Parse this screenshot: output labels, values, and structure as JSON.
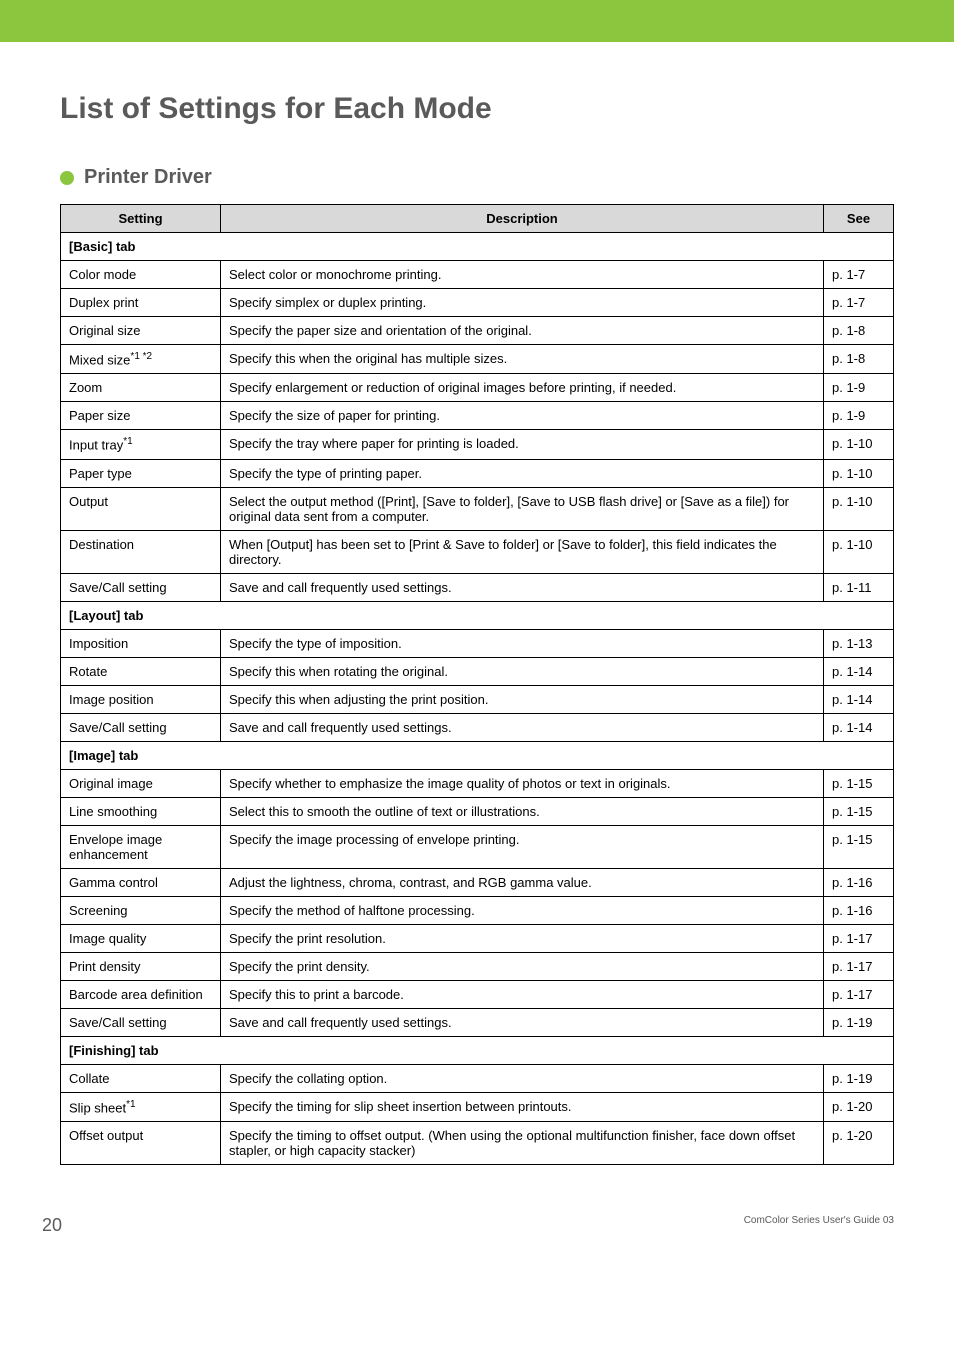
{
  "page_title": "List of Settings for Each Mode",
  "section": {
    "title": "Printer Driver"
  },
  "table": {
    "headers": {
      "setting": "Setting",
      "description": "Description",
      "see": "See"
    },
    "groups": [
      {
        "label": "[Basic] tab",
        "rows": [
          {
            "setting": "Color mode",
            "desc": "Select color or monochrome printing.",
            "see": "p. 1-7"
          },
          {
            "setting": "Duplex print",
            "desc": "Specify simplex or duplex printing.",
            "see": "p. 1-7"
          },
          {
            "setting": "Original size",
            "desc": "Specify the paper size and orientation of the original.",
            "see": "p. 1-8"
          },
          {
            "setting": "Mixed size",
            "sup": "*1 *2",
            "desc": "Specify this when the original has multiple sizes.",
            "see": "p. 1-8"
          },
          {
            "setting": "Zoom",
            "desc": "Specify enlargement or reduction of original images before printing, if needed.",
            "see": "p. 1-9"
          },
          {
            "setting": "Paper size",
            "desc": "Specify the size of paper for printing.",
            "see": "p. 1-9"
          },
          {
            "setting": "Input tray",
            "sup": "*1",
            "desc": "Specify the tray where paper for printing is loaded.",
            "see": "p. 1-10"
          },
          {
            "setting": "Paper type",
            "desc": "Specify the type of printing paper.",
            "see": "p. 1-10"
          },
          {
            "setting": "Output",
            "desc": "Select the output method ([Print], [Save to folder], [Save to USB flash drive] or [Save as a file]) for original data sent from a computer.",
            "see": "p. 1-10"
          },
          {
            "setting": "Destination",
            "desc": "When [Output] has been set to [Print & Save to folder] or [Save to folder], this field indicates the directory.",
            "see": "p. 1-10"
          },
          {
            "setting": "Save/Call setting",
            "desc": "Save and call frequently used settings.",
            "see": "p. 1-11"
          }
        ]
      },
      {
        "label": "[Layout] tab",
        "rows": [
          {
            "setting": "Imposition",
            "desc": "Specify the type of imposition.",
            "see": "p. 1-13"
          },
          {
            "setting": "Rotate",
            "desc": "Specify this when rotating the original.",
            "see": "p. 1-14"
          },
          {
            "setting": "Image position",
            "desc": "Specify this when adjusting the print position.",
            "see": "p. 1-14"
          },
          {
            "setting": "Save/Call setting",
            "desc": "Save and call frequently used settings.",
            "see": "p. 1-14"
          }
        ]
      },
      {
        "label": "[Image] tab",
        "rows": [
          {
            "setting": "Original image",
            "desc": "Specify whether to emphasize the image quality of photos or text in originals.",
            "see": "p. 1-15"
          },
          {
            "setting": "Line smoothing",
            "desc": "Select this to smooth the outline of text or illustrations.",
            "see": "p. 1-15"
          },
          {
            "setting": "Envelope image enhancement",
            "desc": "Specify the image processing of envelope printing.",
            "see": "p. 1-15"
          },
          {
            "setting": "Gamma control",
            "desc": "Adjust the lightness, chroma, contrast, and RGB gamma value.",
            "see": "p. 1-16"
          },
          {
            "setting": "Screening",
            "desc": "Specify the method of halftone processing.",
            "see": "p. 1-16"
          },
          {
            "setting": "Image quality",
            "desc": "Specify the print resolution.",
            "see": "p. 1-17"
          },
          {
            "setting": "Print density",
            "desc": "Specify the print density.",
            "see": "p. 1-17"
          },
          {
            "setting": "Barcode area definition",
            "desc": "Specify this to print a barcode.",
            "see": "p. 1-17"
          },
          {
            "setting": "Save/Call setting",
            "desc": "Save and call frequently used settings.",
            "see": "p. 1-19"
          }
        ]
      },
      {
        "label": "[Finishing] tab",
        "rows": [
          {
            "setting": "Collate",
            "desc": "Specify the collating option.",
            "see": "p. 1-19"
          },
          {
            "setting": "Slip sheet",
            "sup": "*1",
            "desc": "Specify the timing for slip sheet insertion between printouts.",
            "see": "p. 1-20"
          },
          {
            "setting": "Offset output",
            "desc": "Specify the timing to offset output. (When using the optional multifunction finisher, face down offset stapler, or high capacity stacker)",
            "see": "p. 1-20"
          }
        ]
      }
    ]
  },
  "page_number": "20",
  "footer_text": "ComColor Series User's Guide 03",
  "colors": {
    "band": "#8cc63f",
    "title": "#5a5a5a",
    "th_bg": "#d9d9d9",
    "border": "#000000"
  }
}
